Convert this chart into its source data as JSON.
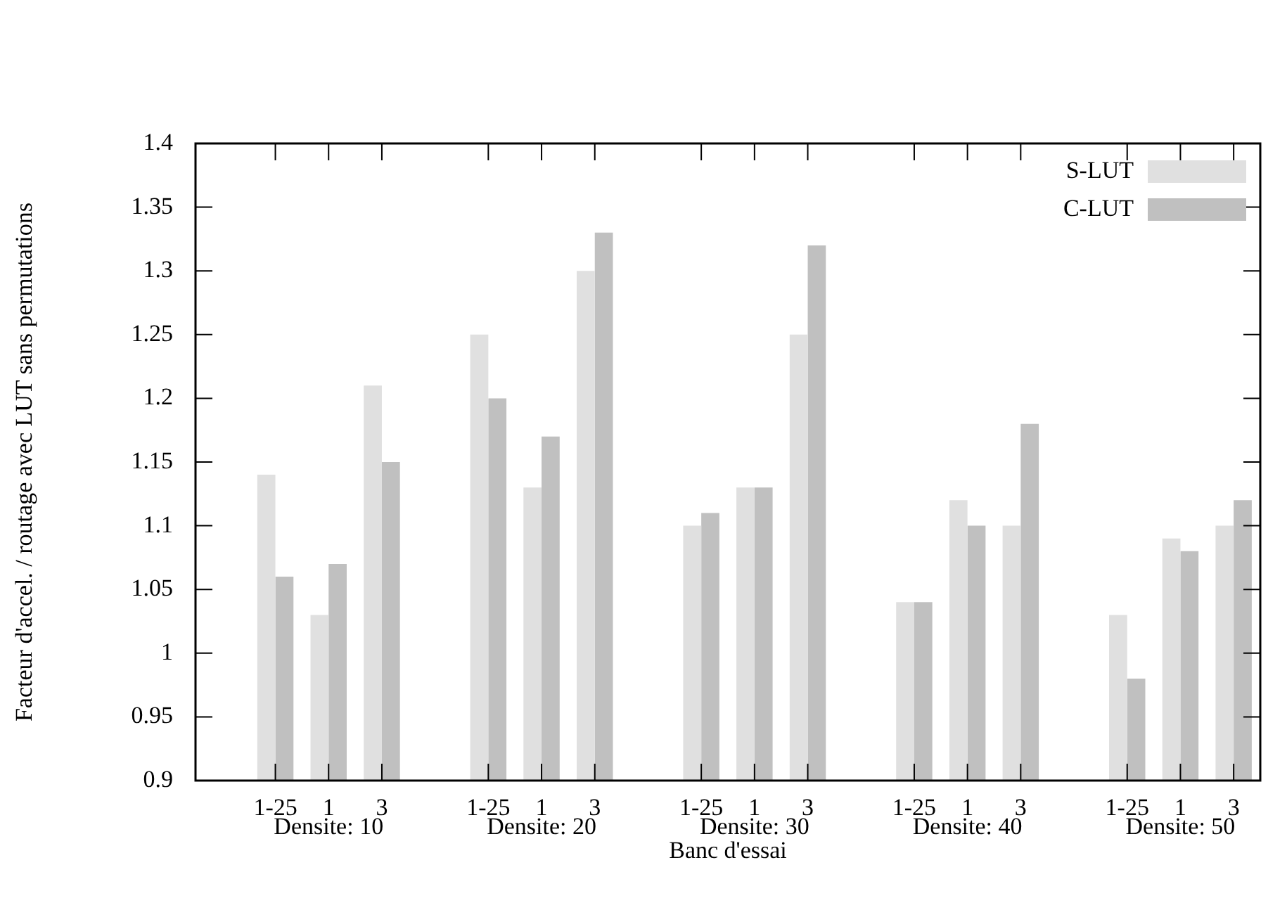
{
  "chart_data": {
    "type": "bar",
    "xlabel": "Banc d'essai",
    "ylabel": "Facteur d'accel. / routage avec LUT sans permutations",
    "categories": [
      null,
      "1-25",
      "1",
      "3",
      null,
      "1-25",
      "1",
      "3",
      null,
      "1-25",
      "1",
      "3",
      null,
      "1-25",
      "1",
      "3",
      null,
      "1-25",
      "1",
      "3"
    ],
    "series": [
      {
        "name": "S-LUT",
        "color": "#e0e0e0",
        "values": [
          null,
          1.14,
          1.03,
          1.21,
          null,
          1.25,
          1.13,
          1.3,
          null,
          1.1,
          1.13,
          1.25,
          null,
          1.04,
          1.12,
          1.1,
          null,
          1.03,
          1.09,
          1.1
        ]
      },
      {
        "name": "C-LUT",
        "color": "#c0c0c0",
        "values": [
          null,
          1.06,
          1.07,
          1.15,
          null,
          1.2,
          1.17,
          1.33,
          null,
          1.11,
          1.13,
          1.32,
          null,
          1.04,
          1.1,
          1.18,
          null,
          0.98,
          1.08,
          1.12
        ]
      }
    ],
    "annotations": [
      "Densite: 10",
      "Densite: 20",
      "Densite: 30",
      "Densite: 40",
      "Densite: 50"
    ],
    "ylim": [
      0.9,
      1.4
    ],
    "yticks": [
      0.9,
      0.95,
      1,
      1.05,
      1.1,
      1.15,
      1.2,
      1.25,
      1.3,
      1.35,
      1.4
    ],
    "legend": "top right"
  }
}
